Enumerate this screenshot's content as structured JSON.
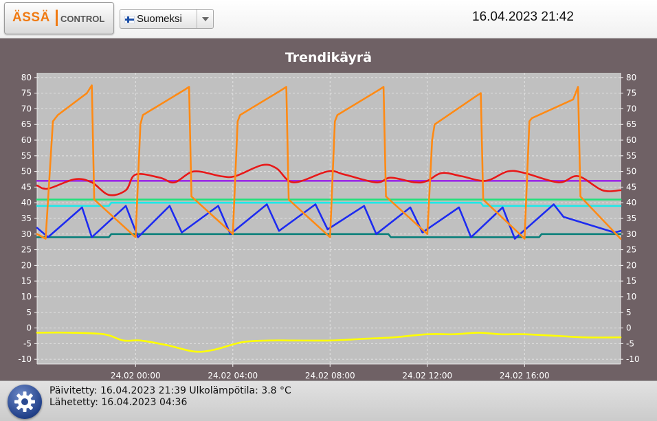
{
  "header": {
    "logo": {
      "brand": "ÄSSÄ",
      "sub": "CONTROL"
    },
    "language": {
      "selected": "Suomeksi",
      "icon": "finnish-flag-icon"
    },
    "datetime": "16.04.2023 21:42"
  },
  "footer": {
    "updated_label": "Päivitetty:",
    "updated_value": "16.04.2023 21:39",
    "outdoor_label": "Ulkolämpötila:",
    "outdoor_value": "3.8 °C",
    "sent_label": "Lähetetty:",
    "sent_value": "16.04.2023 04:36",
    "settings_icon": "gear-icon"
  },
  "chart_data": {
    "type": "line",
    "title": "Trendikäyrä",
    "xlabel": "",
    "ylabel": "",
    "x_unit": "hours",
    "xlim": [
      19.95,
      43.95
    ],
    "ylim": [
      -11.5,
      81.5
    ],
    "y_ticks": [
      -10,
      -5,
      0,
      5,
      10,
      15,
      20,
      25,
      30,
      35,
      40,
      45,
      50,
      55,
      60,
      65,
      70,
      75,
      80
    ],
    "x_ticks": [
      {
        "x": 24,
        "label": "24.02 00:00"
      },
      {
        "x": 28,
        "label": "24.02 04:00"
      },
      {
        "x": 32,
        "label": "24.02 08:00"
      },
      {
        "x": 36,
        "label": "24.02 12:00"
      },
      {
        "x": 40,
        "label": "24.02 16:00"
      }
    ],
    "grid": true,
    "legend": "none",
    "series": [
      {
        "color": "#9a2be6",
        "shape": "linear",
        "x": [
          19.95,
          43.95
        ],
        "y": [
          47,
          47
        ]
      },
      {
        "color": "#22e07a",
        "shape": "linear",
        "x": [
          19.95,
          43.95
        ],
        "y": [
          41,
          41
        ]
      },
      {
        "color": "#1fe8e8",
        "shape": "linear",
        "x": [
          19.95,
          22.9,
          23.0,
          38.2,
          38.3,
          43.95
        ],
        "y": [
          39,
          39,
          40,
          40,
          39,
          39
        ]
      },
      {
        "color": "#0a7f7a",
        "shape": "linear",
        "x": [
          19.95,
          22.9,
          23.0,
          34.4,
          34.5,
          40.6,
          40.7,
          43.95
        ],
        "y": [
          29,
          29,
          30,
          30,
          29,
          29,
          30,
          30
        ]
      },
      {
        "color": "#e81818",
        "shape": "smooth",
        "x": [
          19.95,
          20.4,
          21.5,
          22.2,
          22.9,
          23.6,
          24.0,
          25.0,
          25.6,
          26.4,
          27.5,
          28.1,
          29.2,
          29.8,
          30.5,
          31.9,
          32.6,
          33.9,
          34.5,
          35.5,
          36.0,
          36.6,
          37.4,
          38.4,
          39.3,
          40.0,
          41.4,
          42.2,
          43.2,
          43.95
        ],
        "y": [
          45.5,
          44.5,
          47.5,
          46.5,
          42.5,
          44,
          49,
          48,
          46.5,
          50,
          48.5,
          48.5,
          52,
          51,
          46.5,
          50,
          49,
          46.5,
          48,
          46.5,
          47,
          49.5,
          48.5,
          47,
          50,
          49.5,
          46.5,
          48.5,
          44,
          44
        ]
      },
      {
        "color": "#1d2bf0",
        "shape": "linear",
        "x": [
          19.95,
          20.4,
          21.8,
          22.2,
          23.6,
          24.1,
          25.4,
          25.9,
          27.4,
          27.9,
          29.4,
          29.9,
          31.4,
          31.9,
          33.4,
          33.9,
          35.3,
          35.8,
          37.3,
          37.8,
          39.1,
          39.6,
          41.2,
          41.6,
          43.7,
          43.95
        ],
        "y": [
          32,
          29,
          38.5,
          29,
          39,
          29,
          39,
          30.5,
          39,
          30,
          39.5,
          31,
          39.5,
          31.5,
          39,
          30,
          38.5,
          30.5,
          38.5,
          29,
          38.5,
          28.5,
          39.5,
          35.5,
          30.5,
          31
        ]
      },
      {
        "color": "#ff8a14",
        "shape": "linear",
        "x": [
          19.95,
          20.3,
          20.6,
          20.8,
          22.0,
          22.2,
          22.3,
          24.0,
          24.2,
          24.3,
          26.0,
          26.2,
          26.3,
          28.0,
          28.2,
          28.3,
          30.0,
          30.2,
          30.3,
          32.0,
          32.2,
          32.3,
          34.0,
          34.2,
          34.3,
          36.0,
          36.2,
          36.3,
          38.0,
          38.2,
          38.3,
          40.0,
          40.2,
          40.3,
          42.0,
          42.2,
          42.3,
          43.95
        ],
        "y": [
          30,
          28.5,
          66,
          68,
          75,
          77.5,
          41,
          29,
          65,
          68,
          76,
          77,
          42,
          30,
          66,
          68,
          76,
          77,
          41,
          29,
          66,
          68,
          76,
          77,
          42,
          30,
          60,
          65,
          74,
          75,
          41,
          28.5,
          66,
          67,
          73,
          77,
          42,
          28.5
        ]
      },
      {
        "color": "#ffff00",
        "shape": "smooth",
        "x": [
          19.95,
          21.3,
          22.7,
          23.5,
          24.2,
          25.3,
          26.4,
          27.2,
          28.4,
          29.5,
          30.5,
          32.0,
          33.3,
          34.6,
          36.0,
          37.1,
          38.1,
          39.0,
          40.0,
          41.3,
          42.5,
          43.95
        ],
        "y": [
          -1.5,
          -1.5,
          -2,
          -4,
          -4,
          -5.5,
          -7.5,
          -7,
          -4.5,
          -4,
          -4,
          -4,
          -3.5,
          -3,
          -2,
          -2,
          -1.5,
          -2,
          -2,
          -2.5,
          -3,
          -3
        ]
      }
    ]
  }
}
